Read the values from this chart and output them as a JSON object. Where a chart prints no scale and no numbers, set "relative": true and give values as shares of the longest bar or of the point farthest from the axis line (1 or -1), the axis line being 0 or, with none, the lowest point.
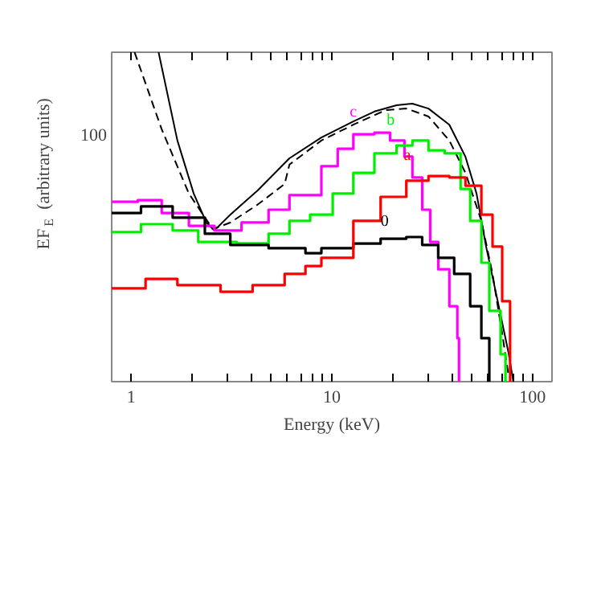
{
  "chart_data": {
    "type": "step",
    "xlabel": "Energy (keV)",
    "ylabel": "EF$_{E}$ (arbitrary units)",
    "log": "x",
    "grid": false,
    "relative": true,
    "xlim": [
      0.8,
      125
    ],
    "xticks": [
      1,
      {
        "value": 2,
        "label": null
      },
      {
        "value": 3,
        "label": null
      },
      {
        "value": 4,
        "label": null
      },
      {
        "value": 5,
        "label": null
      },
      {
        "value": 6,
        "label": null
      },
      {
        "value": 7,
        "label": null
      },
      {
        "value": 8,
        "label": null
      },
      {
        "value": 9,
        "label": null
      },
      10,
      {
        "value": 20,
        "label": null
      },
      {
        "value": 30,
        "label": null
      },
      {
        "value": 40,
        "label": null
      },
      {
        "value": 50,
        "label": null
      },
      {
        "value": 60,
        "label": null
      },
      {
        "value": 70,
        "label": null
      },
      {
        "value": 80,
        "label": null
      },
      {
        "value": 90,
        "label": null
      },
      100
    ],
    "series": [
      {
        "type": "line",
        "line_style": "solid",
        "color": "#000000",
        "x": [
          1.37,
          1.7,
          2.05,
          2.37,
          2.6,
          3.12,
          4.26,
          6.15,
          8.87,
          12.8,
          16.3,
          21.0,
          25.2,
          30.3,
          38.5,
          46.3,
          52.6,
          58.7,
          66.8,
          75.9,
          80.2
        ],
        "values": [
          1.0,
          0.732,
          0.571,
          0.483,
          0.459,
          0.507,
          0.58,
          0.678,
          0.741,
          0.79,
          0.82,
          0.839,
          0.844,
          0.829,
          0.78,
          0.683,
          0.571,
          0.41,
          0.249,
          0.088,
          0.0
        ]
      },
      {
        "type": "line",
        "line_style": "dashed",
        "color": "#000000",
        "x": [
          1.04,
          1.42,
          1.94,
          2.55,
          3.12,
          4.26,
          5.82,
          6.15,
          8.87,
          12.8,
          18.5,
          23.5,
          30.3,
          38.5,
          46.3,
          55.6,
          63.2,
          70.6,
          75.9
        ],
        "values": [
          1.0,
          0.766,
          0.571,
          0.463,
          0.483,
          0.537,
          0.6,
          0.659,
          0.732,
          0.78,
          0.824,
          0.829,
          0.805,
          0.732,
          0.634,
          0.488,
          0.327,
          0.146,
          0.02
        ]
      },
      {
        "name": "c",
        "color": "#ff00ff",
        "x": [
          0.8,
          1.08,
          1.42,
          1.94,
          2.6,
          3.55,
          4.84,
          6.15,
          7.8,
          8.87,
          10.7,
          12.8,
          16.3,
          19.5,
          23.0,
          25.2,
          28.2,
          30.9,
          33.9,
          38.5,
          42.2,
          43.0
        ],
        "values": [
          0.546,
          0.551,
          0.512,
          0.473,
          0.459,
          0.483,
          0.522,
          0.566,
          0.566,
          0.654,
          0.707,
          0.751,
          0.756,
          0.732,
          0.683,
          0.62,
          0.522,
          0.424,
          0.341,
          0.229,
          0.132,
          0.0
        ]
      },
      {
        "name": "b",
        "color": "#00ee00",
        "x": [
          0.8,
          1.12,
          1.61,
          2.16,
          3.36,
          4.84,
          6.15,
          7.8,
          10.1,
          12.8,
          16.3,
          21.0,
          25.2,
          30.3,
          36.5,
          43.8,
          48.9,
          55.6,
          60.9,
          69.3,
          73.3
        ],
        "values": [
          0.454,
          0.478,
          0.459,
          0.424,
          0.42,
          0.449,
          0.488,
          0.507,
          0.571,
          0.634,
          0.693,
          0.717,
          0.732,
          0.702,
          0.693,
          0.585,
          0.488,
          0.361,
          0.215,
          0.083,
          0.0
        ]
      },
      {
        "name": "0",
        "color": "#000000",
        "x": [
          0.8,
          1.12,
          1.61,
          2.33,
          3.12,
          4.84,
          7.39,
          8.87,
          12.8,
          17.5,
          23.5,
          28.2,
          33.9,
          40.7,
          48.9,
          55.6,
          60.9
        ],
        "values": [
          0.512,
          0.532,
          0.498,
          0.449,
          0.415,
          0.405,
          0.39,
          0.405,
          0.419,
          0.434,
          0.439,
          0.415,
          0.376,
          0.327,
          0.229,
          0.132,
          0.0
        ]
      },
      {
        "name": "a",
        "color": "#ff0000",
        "x": [
          0.8,
          1.18,
          1.7,
          2.79,
          4.03,
          5.82,
          7.39,
          8.87,
          12.8,
          17.5,
          23.5,
          30.3,
          38.5,
          46.3,
          55.6,
          63.2,
          70.6,
          77.3,
          77.3
        ],
        "values": [
          0.283,
          0.312,
          0.293,
          0.273,
          0.293,
          0.327,
          0.351,
          0.376,
          0.488,
          0.561,
          0.61,
          0.624,
          0.62,
          0.595,
          0.507,
          0.41,
          0.244,
          0.098,
          0.0
        ]
      }
    ],
    "annotations": [
      "100"
    ]
  }
}
